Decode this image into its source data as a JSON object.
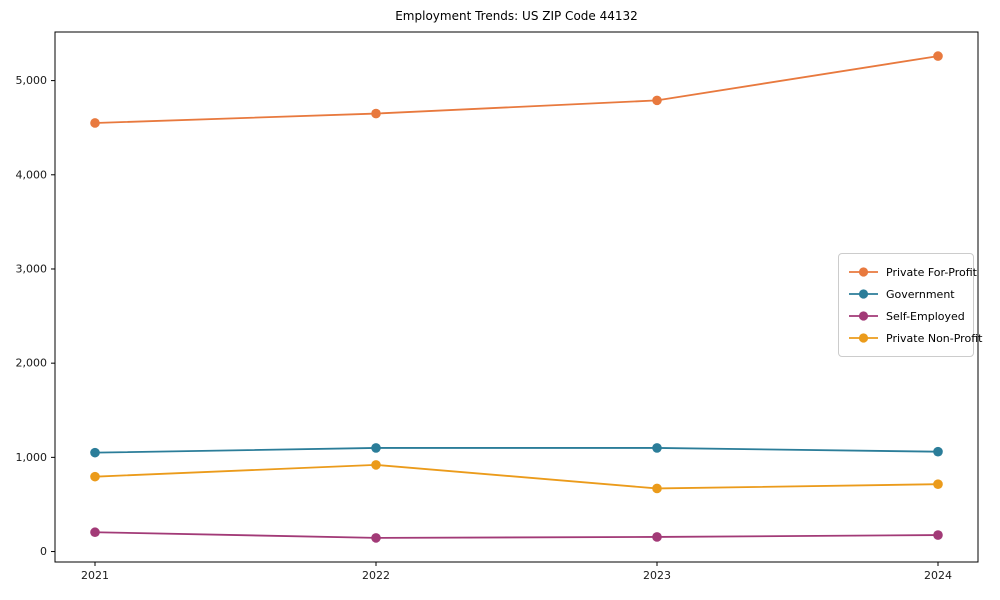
{
  "figure": {
    "background": "#ffffff",
    "axis_color": "#000000",
    "tick_label_color": "#1a1a1a",
    "legend_border_color": "#cccccc"
  },
  "chart_data": {
    "type": "line",
    "title": "Employment Trends: US ZIP Code 44132",
    "xlabel": "",
    "ylabel": "",
    "x": [
      "2021",
      "2022",
      "2023",
      "2024"
    ],
    "series": [
      {
        "name": "Private For-Profit",
        "color": "#e8793e",
        "values": [
          4550,
          4650,
          4790,
          5260
        ]
      },
      {
        "name": "Government",
        "color": "#2b7d99",
        "values": [
          1050,
          1100,
          1100,
          1060
        ]
      },
      {
        "name": "Self-Employed",
        "color": "#a23a77",
        "values": [
          205,
          145,
          155,
          175
        ]
      },
      {
        "name": "Private Non-Profit",
        "color": "#eb9b1b",
        "values": [
          795,
          920,
          670,
          715
        ]
      }
    ],
    "ylim": [
      -111,
      5516
    ],
    "yticks": {
      "values": [
        0,
        1000,
        2000,
        3000,
        4000,
        5000
      ],
      "labels": [
        "0",
        "1,000",
        "2,000",
        "3,000",
        "4,000",
        "5,000"
      ]
    },
    "grid": false,
    "legend_position": "center right"
  }
}
